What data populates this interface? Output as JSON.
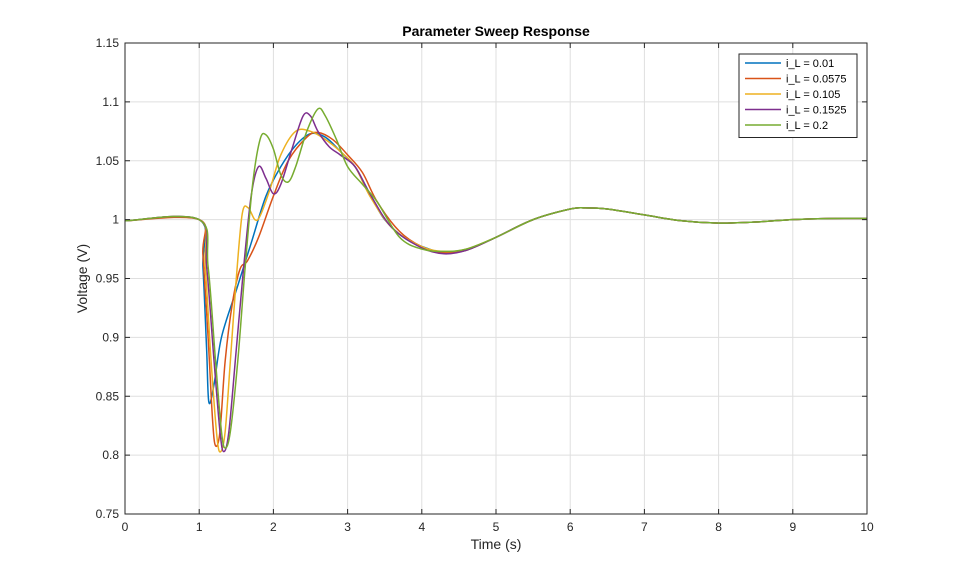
{
  "chart_data": {
    "type": "line",
    "title": "Parameter Sweep Response",
    "xlabel": "Time (s)",
    "ylabel": "Voltage (V)",
    "xlim": [
      0,
      10
    ],
    "ylim": [
      0.75,
      1.15
    ],
    "xticks": [
      "0",
      "1",
      "2",
      "3",
      "4",
      "5",
      "6",
      "7",
      "8",
      "9",
      "10"
    ],
    "yticks": [
      "0.75",
      "0.8",
      "0.85",
      "0.9",
      "0.95",
      "1",
      "1.05",
      "1.1",
      "1.15"
    ],
    "grid": true,
    "legend_position": "top-right",
    "series": [
      {
        "name": "i_L = 0.01",
        "color": "#0072BD",
        "points": [
          [
            0,
            0.999
          ],
          [
            1,
            1.0
          ],
          [
            1.05,
            0.96
          ],
          [
            1.1,
            0.89
          ],
          [
            1.13,
            0.845
          ],
          [
            1.2,
            0.86
          ],
          [
            1.3,
            0.9
          ],
          [
            1.5,
            0.94
          ],
          [
            1.7,
            0.98
          ],
          [
            1.9,
            1.02
          ],
          [
            2.1,
            1.045
          ],
          [
            2.3,
            1.063
          ],
          [
            2.5,
            1.073
          ],
          [
            2.7,
            1.07
          ],
          [
            2.9,
            1.058
          ],
          [
            3.1,
            1.045
          ],
          [
            3.3,
            1.022
          ],
          [
            3.5,
            1.0
          ],
          [
            3.8,
            0.983
          ],
          [
            4.1,
            0.975
          ],
          [
            4.3,
            0.972
          ],
          [
            4.6,
            0.974
          ],
          [
            5.0,
            0.985
          ],
          [
            5.5,
            1.0
          ],
          [
            6.0,
            1.009
          ],
          [
            6.2,
            1.01
          ],
          [
            6.5,
            1.009
          ],
          [
            7.0,
            1.004
          ],
          [
            7.5,
            0.999
          ],
          [
            8.0,
            0.997
          ],
          [
            8.5,
            0.998
          ],
          [
            9.0,
            1.0
          ],
          [
            9.5,
            1.001
          ],
          [
            10,
            1.001
          ]
        ]
      },
      {
        "name": "i_L = 0.0575",
        "color": "#D95319",
        "points": [
          [
            0,
            0.999
          ],
          [
            1,
            1.0
          ],
          [
            1.05,
            0.97
          ],
          [
            1.12,
            0.9
          ],
          [
            1.18,
            0.83
          ],
          [
            1.22,
            0.808
          ],
          [
            1.28,
            0.82
          ],
          [
            1.35,
            0.88
          ],
          [
            1.45,
            0.93
          ],
          [
            1.55,
            0.958
          ],
          [
            1.65,
            0.965
          ],
          [
            1.8,
            0.985
          ],
          [
            2.0,
            1.02
          ],
          [
            2.2,
            1.05
          ],
          [
            2.45,
            1.07
          ],
          [
            2.6,
            1.074
          ],
          [
            2.8,
            1.068
          ],
          [
            3.0,
            1.055
          ],
          [
            3.2,
            1.04
          ],
          [
            3.4,
            1.015
          ],
          [
            3.7,
            0.99
          ],
          [
            4.0,
            0.977
          ],
          [
            4.3,
            0.972
          ],
          [
            4.6,
            0.974
          ],
          [
            5.0,
            0.985
          ],
          [
            5.5,
            1.0
          ],
          [
            6.0,
            1.009
          ],
          [
            6.2,
            1.01
          ],
          [
            6.5,
            1.009
          ],
          [
            7.0,
            1.004
          ],
          [
            7.5,
            0.999
          ],
          [
            8.0,
            0.997
          ],
          [
            8.5,
            0.998
          ],
          [
            9.0,
            1.0
          ],
          [
            9.5,
            1.001
          ],
          [
            10,
            1.001
          ]
        ]
      },
      {
        "name": "i_L = 0.105",
        "color": "#EDB120",
        "points": [
          [
            0,
            0.999
          ],
          [
            1,
            1.0
          ],
          [
            1.08,
            0.96
          ],
          [
            1.16,
            0.88
          ],
          [
            1.24,
            0.815
          ],
          [
            1.29,
            0.803
          ],
          [
            1.35,
            0.82
          ],
          [
            1.42,
            0.88
          ],
          [
            1.5,
            0.95
          ],
          [
            1.58,
            1.005
          ],
          [
            1.66,
            1.01
          ],
          [
            1.75,
            1.0
          ],
          [
            1.82,
            1.003
          ],
          [
            1.95,
            1.025
          ],
          [
            2.1,
            1.055
          ],
          [
            2.3,
            1.075
          ],
          [
            2.5,
            1.075
          ],
          [
            2.7,
            1.068
          ],
          [
            2.9,
            1.058
          ],
          [
            3.1,
            1.045
          ],
          [
            3.3,
            1.02
          ],
          [
            3.6,
            0.993
          ],
          [
            4.0,
            0.977
          ],
          [
            4.3,
            0.973
          ],
          [
            4.6,
            0.975
          ],
          [
            5.0,
            0.985
          ],
          [
            5.5,
            1.0
          ],
          [
            6.0,
            1.009
          ],
          [
            6.2,
            1.01
          ],
          [
            6.5,
            1.009
          ],
          [
            7.0,
            1.004
          ],
          [
            7.5,
            0.999
          ],
          [
            8.0,
            0.997
          ],
          [
            8.5,
            0.998
          ],
          [
            9.0,
            1.0
          ],
          [
            9.5,
            1.001
          ],
          [
            10,
            1.001
          ]
        ]
      },
      {
        "name": "i_L = 0.1525",
        "color": "#7E2F8E",
        "points": [
          [
            0,
            0.999
          ],
          [
            1,
            1.0
          ],
          [
            1.1,
            0.96
          ],
          [
            1.2,
            0.88
          ],
          [
            1.28,
            0.82
          ],
          [
            1.33,
            0.803
          ],
          [
            1.4,
            0.82
          ],
          [
            1.5,
            0.89
          ],
          [
            1.6,
            0.96
          ],
          [
            1.7,
            1.02
          ],
          [
            1.8,
            1.045
          ],
          [
            1.9,
            1.035
          ],
          [
            2.0,
            1.022
          ],
          [
            2.1,
            1.03
          ],
          [
            2.25,
            1.06
          ],
          [
            2.4,
            1.088
          ],
          [
            2.5,
            1.088
          ],
          [
            2.6,
            1.075
          ],
          [
            2.75,
            1.062
          ],
          [
            2.9,
            1.055
          ],
          [
            3.1,
            1.045
          ],
          [
            3.3,
            1.022
          ],
          [
            3.6,
            0.993
          ],
          [
            4.0,
            0.976
          ],
          [
            4.3,
            0.971
          ],
          [
            4.6,
            0.974
          ],
          [
            5.0,
            0.985
          ],
          [
            5.5,
            1.0
          ],
          [
            6.0,
            1.009
          ],
          [
            6.2,
            1.01
          ],
          [
            6.5,
            1.009
          ],
          [
            7.0,
            1.004
          ],
          [
            7.5,
            0.999
          ],
          [
            8.0,
            0.997
          ],
          [
            8.5,
            0.998
          ],
          [
            9.0,
            1.0
          ],
          [
            9.5,
            1.001
          ],
          [
            10,
            1.001
          ]
        ]
      },
      {
        "name": "i_L = 0.2",
        "color": "#77AC30",
        "points": [
          [
            0,
            0.999
          ],
          [
            1,
            1.0
          ],
          [
            1.12,
            0.96
          ],
          [
            1.22,
            0.88
          ],
          [
            1.3,
            0.82
          ],
          [
            1.35,
            0.806
          ],
          [
            1.42,
            0.82
          ],
          [
            1.52,
            0.88
          ],
          [
            1.62,
            0.96
          ],
          [
            1.72,
            1.03
          ],
          [
            1.82,
            1.068
          ],
          [
            1.9,
            1.072
          ],
          [
            2.0,
            1.06
          ],
          [
            2.1,
            1.038
          ],
          [
            2.2,
            1.032
          ],
          [
            2.3,
            1.045
          ],
          [
            2.45,
            1.075
          ],
          [
            2.6,
            1.094
          ],
          [
            2.7,
            1.088
          ],
          [
            2.85,
            1.068
          ],
          [
            3.0,
            1.045
          ],
          [
            3.2,
            1.03
          ],
          [
            3.4,
            1.015
          ],
          [
            3.7,
            0.985
          ],
          [
            4.0,
            0.975
          ],
          [
            4.3,
            0.973
          ],
          [
            4.6,
            0.975
          ],
          [
            5.0,
            0.985
          ],
          [
            5.5,
            1.0
          ],
          [
            6.0,
            1.009
          ],
          [
            6.2,
            1.01
          ],
          [
            6.5,
            1.009
          ],
          [
            7.0,
            1.004
          ],
          [
            7.5,
            0.999
          ],
          [
            8.0,
            0.997
          ],
          [
            8.5,
            0.998
          ],
          [
            9.0,
            1.0
          ],
          [
            9.5,
            1.001
          ],
          [
            10,
            1.001
          ]
        ]
      }
    ]
  }
}
